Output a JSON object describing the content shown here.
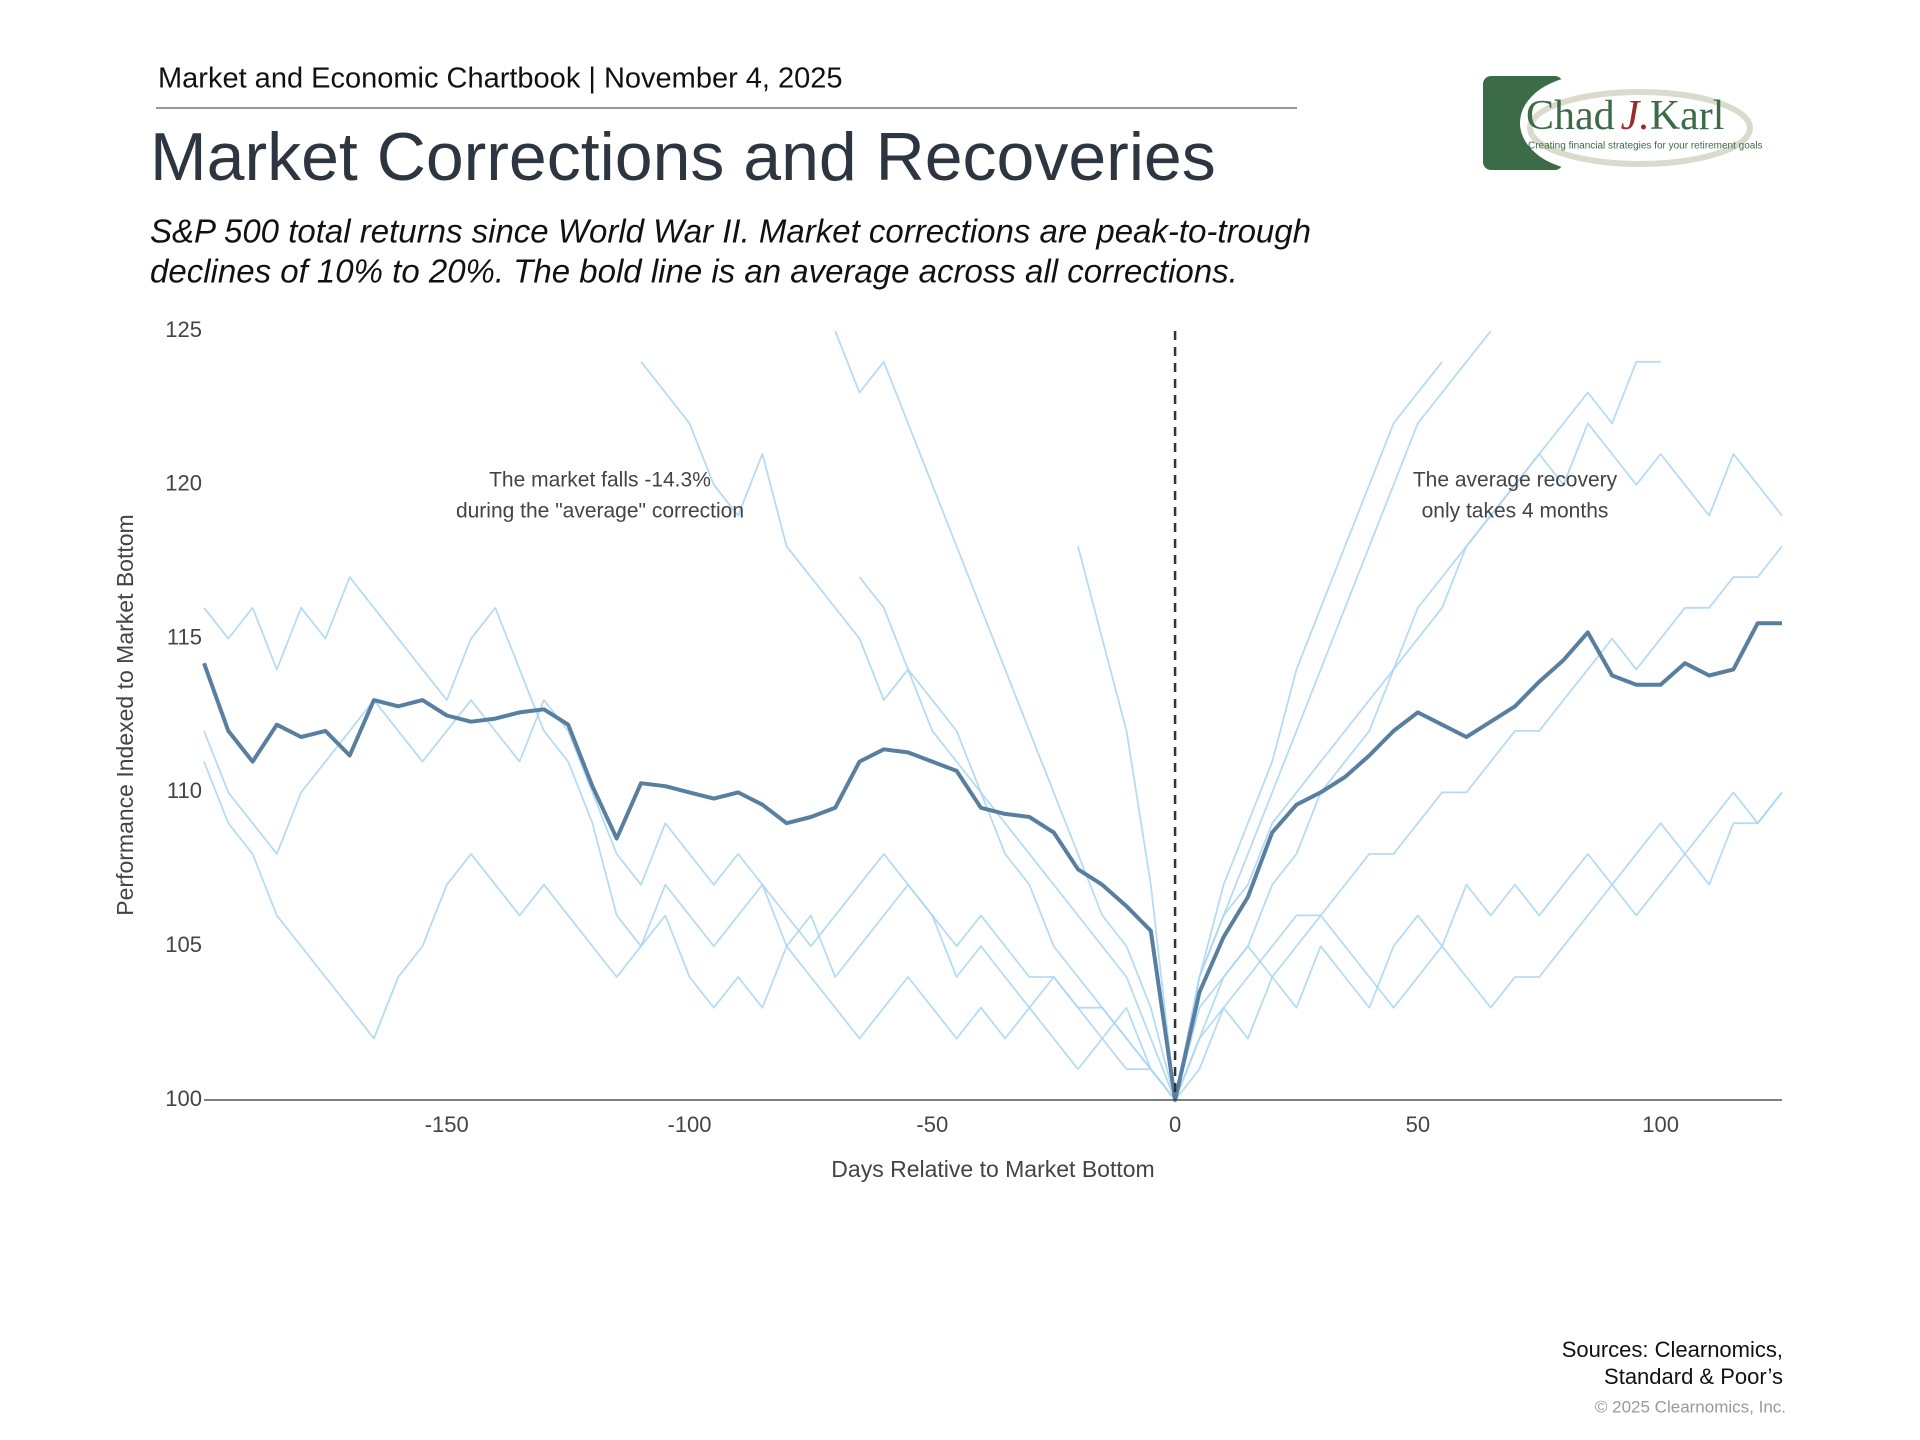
{
  "header": "Market and Economic Chartbook | November 4, 2025",
  "logo": {
    "first": "Chad",
    "middle": "J.",
    "last": "Karl",
    "tagline": "Creating financial strategies for your retirement goals"
  },
  "chart_data": {
    "type": "line",
    "title": "Market Corrections and Recoveries",
    "subtitle": [
      "S&P 500 total returns since World War II. Market corrections are peak-to-trough",
      "declines of 10% to 20%. The bold line is an average across all corrections."
    ],
    "x_label": "Days Relative to Market Bottom",
    "y_label": "Performance Indexed to Market Bottom",
    "annotations": [
      [
        "The market falls -14.3%",
        "during the \"average\" correction"
      ],
      [
        "The average recovery",
        "only takes 4 months"
      ]
    ],
    "reference_line_x": 0,
    "xlim": [
      -200,
      125
    ],
    "ylim": [
      100,
      125
    ],
    "xticks": [
      -150,
      -100,
      -50,
      0,
      50,
      100
    ],
    "yticks": [
      100,
      105,
      110,
      115,
      120,
      125
    ],
    "x": [
      -200,
      -195,
      -190,
      -185,
      -180,
      -175,
      -170,
      -165,
      -160,
      -155,
      -150,
      -145,
      -140,
      -135,
      -130,
      -125,
      -120,
      -115,
      -110,
      -105,
      -100,
      -95,
      -90,
      -85,
      -80,
      -75,
      -70,
      -65,
      -60,
      -55,
      -50,
      -45,
      -40,
      -35,
      -30,
      -25,
      -20,
      -15,
      -10,
      -5,
      0,
      5,
      10,
      15,
      20,
      25,
      30,
      35,
      40,
      45,
      50,
      55,
      60,
      65,
      70,
      75,
      80,
      85,
      90,
      95,
      100,
      105,
      110,
      115,
      120,
      125
    ],
    "series": [
      {
        "color": "#a9d5f3",
        "values": [
          111,
          109,
          108,
          106,
          105,
          104,
          103,
          102,
          104,
          105,
          107,
          108,
          107,
          106,
          107,
          106,
          105,
          104,
          105,
          106,
          104,
          103,
          104,
          103,
          105,
          104,
          103,
          102,
          103,
          104,
          103,
          102,
          103,
          102,
          103,
          102,
          101,
          102,
          101,
          101,
          100,
          101,
          103,
          102,
          104,
          103,
          105,
          104,
          103,
          105,
          106,
          105,
          107,
          106,
          107,
          106,
          107,
          108,
          107,
          108,
          109,
          108,
          109,
          110,
          109,
          110
        ]
      },
      {
        "color": "#a9d5f3",
        "values": [
          116,
          115,
          116,
          114,
          116,
          115,
          117,
          116,
          115,
          114,
          113,
          115,
          116,
          114,
          112,
          111,
          109,
          106,
          105,
          107,
          106,
          105,
          106,
          107,
          105,
          106,
          104,
          105,
          106,
          107,
          106,
          104,
          105,
          104,
          103,
          104,
          103,
          102,
          103,
          101,
          100,
          104,
          106,
          107,
          109,
          110,
          111,
          112,
          113,
          114,
          116,
          117,
          118,
          119,
          120,
          121,
          120,
          122,
          121,
          120,
          121,
          120,
          119,
          121,
          120,
          119
        ]
      },
      {
        "color": "#a9d5f3",
        "values": [
          null,
          null,
          null,
          null,
          null,
          null,
          null,
          null,
          null,
          null,
          null,
          null,
          null,
          null,
          null,
          null,
          null,
          null,
          124,
          123,
          122,
          120,
          119,
          121,
          118,
          117,
          116,
          115,
          113,
          114,
          112,
          111,
          110,
          108,
          107,
          105,
          104,
          103,
          102,
          101,
          100,
          102,
          104,
          105,
          107,
          108,
          110,
          111,
          112,
          114,
          115,
          116,
          118,
          119,
          120,
          121,
          122,
          123,
          122,
          124,
          124,
          null,
          null,
          null,
          null,
          null
        ]
      },
      {
        "color": "#a9d5f3",
        "values": [
          null,
          null,
          null,
          null,
          null,
          null,
          null,
          null,
          null,
          null,
          null,
          null,
          null,
          null,
          null,
          null,
          null,
          null,
          null,
          null,
          null,
          null,
          null,
          null,
          null,
          null,
          125,
          123,
          124,
          122,
          120,
          118,
          116,
          114,
          112,
          110,
          108,
          106,
          105,
          103,
          100,
          104,
          106,
          108,
          110,
          112,
          114,
          116,
          118,
          120,
          122,
          123,
          124,
          125,
          null,
          null,
          null,
          null,
          null,
          null,
          null,
          null,
          null,
          null,
          null,
          null
        ]
      },
      {
        "color": "#a9d5f3",
        "values": [
          112,
          110,
          109,
          108,
          110,
          111,
          112,
          113,
          112,
          111,
          112,
          113,
          112,
          111,
          113,
          112,
          110,
          108,
          107,
          109,
          108,
          107,
          108,
          107,
          106,
          105,
          106,
          107,
          108,
          107,
          106,
          105,
          106,
          105,
          104,
          104,
          103,
          103,
          102,
          101,
          100,
          102,
          103,
          104,
          105,
          106,
          106,
          107,
          108,
          108,
          109,
          110,
          110,
          111,
          112,
          112,
          113,
          114,
          115,
          114,
          115,
          116,
          116,
          117,
          117,
          118
        ]
      },
      {
        "color": "#a9d5f3",
        "values": [
          null,
          null,
          null,
          null,
          null,
          null,
          null,
          null,
          null,
          null,
          null,
          null,
          null,
          null,
          null,
          null,
          null,
          null,
          null,
          null,
          null,
          null,
          null,
          null,
          null,
          null,
          null,
          117,
          116,
          114,
          113,
          112,
          110,
          109,
          108,
          107,
          106,
          105,
          104,
          102,
          100,
          103,
          104,
          105,
          104,
          105,
          106,
          105,
          104,
          103,
          104,
          105,
          104,
          103,
          104,
          104,
          105,
          106,
          107,
          106,
          107,
          108,
          107,
          109,
          109,
          110
        ]
      },
      {
        "color": "#a9d5f3",
        "values": [
          null,
          null,
          null,
          null,
          null,
          null,
          null,
          null,
          null,
          null,
          null,
          null,
          null,
          null,
          null,
          null,
          null,
          null,
          null,
          null,
          null,
          null,
          null,
          null,
          null,
          null,
          null,
          null,
          null,
          null,
          null,
          null,
          null,
          null,
          null,
          null,
          118,
          115,
          112,
          107,
          100,
          104,
          107,
          109,
          111,
          114,
          116,
          118,
          120,
          122,
          123,
          124,
          null,
          null,
          null,
          null,
          null,
          null,
          null,
          null,
          null,
          null,
          null,
          null,
          null,
          null
        ]
      },
      {
        "color": "#587f9f",
        "bold": true,
        "values": [
          114.2,
          112,
          111,
          112.2,
          111.8,
          112,
          111.2,
          113,
          112.8,
          113,
          112.5,
          112.3,
          112.4,
          112.6,
          112.7,
          112.2,
          110.2,
          108.5,
          110.3,
          110.2,
          110,
          109.8,
          110,
          109.6,
          109,
          109.2,
          109.5,
          111,
          111.4,
          111.3,
          111,
          110.7,
          109.5,
          109.3,
          109.2,
          108.7,
          107.5,
          107,
          106.3,
          105.5,
          100,
          103.5,
          105.3,
          106.6,
          108.7,
          109.6,
          110,
          110.5,
          111.2,
          112,
          112.6,
          112.2,
          111.8,
          112.3,
          112.8,
          113.6,
          114.3,
          115.2,
          113.8,
          113.5,
          113.5,
          114.2,
          113.8,
          114,
          115.5,
          115.5
        ]
      }
    ]
  },
  "footer": {
    "sources": [
      "Sources: Clearnomics,",
      "Standard & Poor’s"
    ],
    "copyright": "© 2025 Clearnomics, Inc."
  }
}
